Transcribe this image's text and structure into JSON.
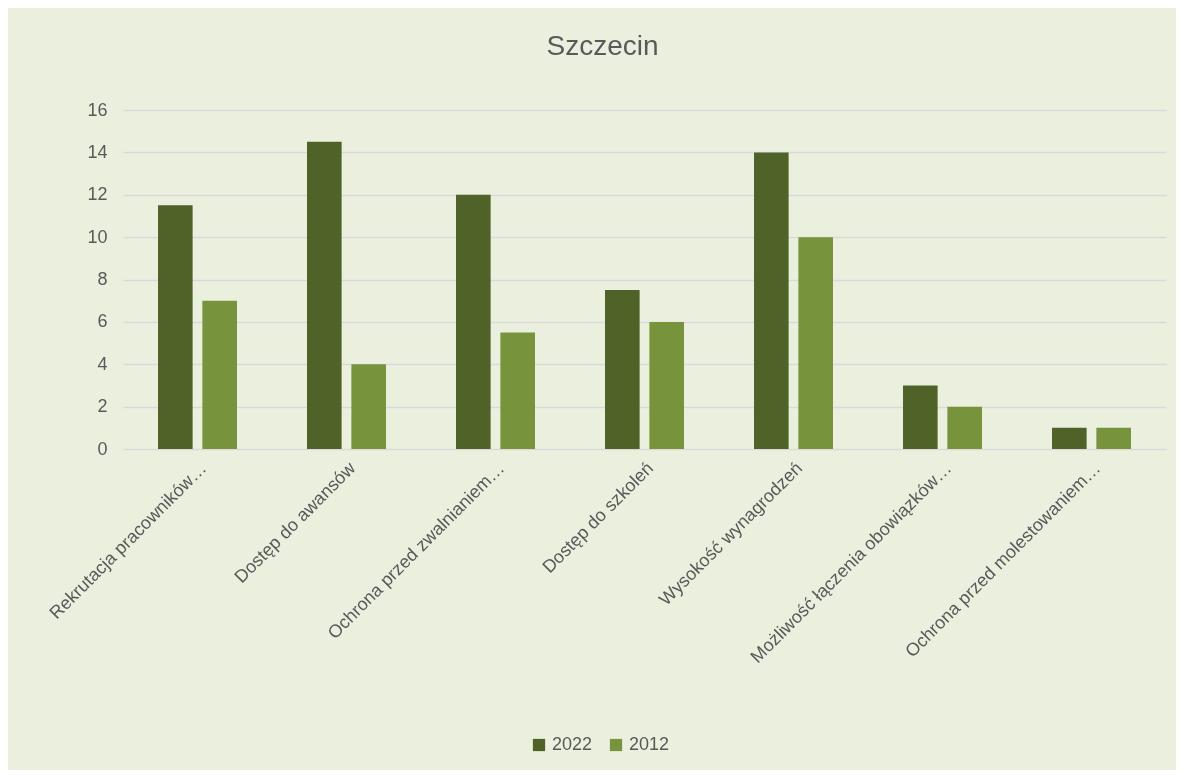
{
  "chart_data": {
    "type": "bar",
    "title": "Szczecin",
    "categories": [
      "Rekrutacja pracowników…",
      "Dostęp do awansów",
      "Ochrona przed zwalnianiem…",
      "Dostęp do szkoleń",
      "Wysokość wynagrodzeń",
      "Możliwość łączenia obowiązków…",
      "Ochrona przed molestowaniem…"
    ],
    "series": [
      {
        "name": "2022",
        "color": "#4f6228",
        "values": [
          11.5,
          14.5,
          12,
          7.5,
          14,
          3,
          1
        ]
      },
      {
        "name": "2012",
        "color": "#77933c",
        "values": [
          7,
          4,
          5.5,
          6,
          10,
          2,
          1
        ]
      }
    ],
    "ylim": [
      0,
      16
    ],
    "yticks": [
      0,
      2,
      4,
      6,
      8,
      10,
      12,
      14,
      16
    ],
    "grid": "y",
    "legend": "bottom"
  }
}
